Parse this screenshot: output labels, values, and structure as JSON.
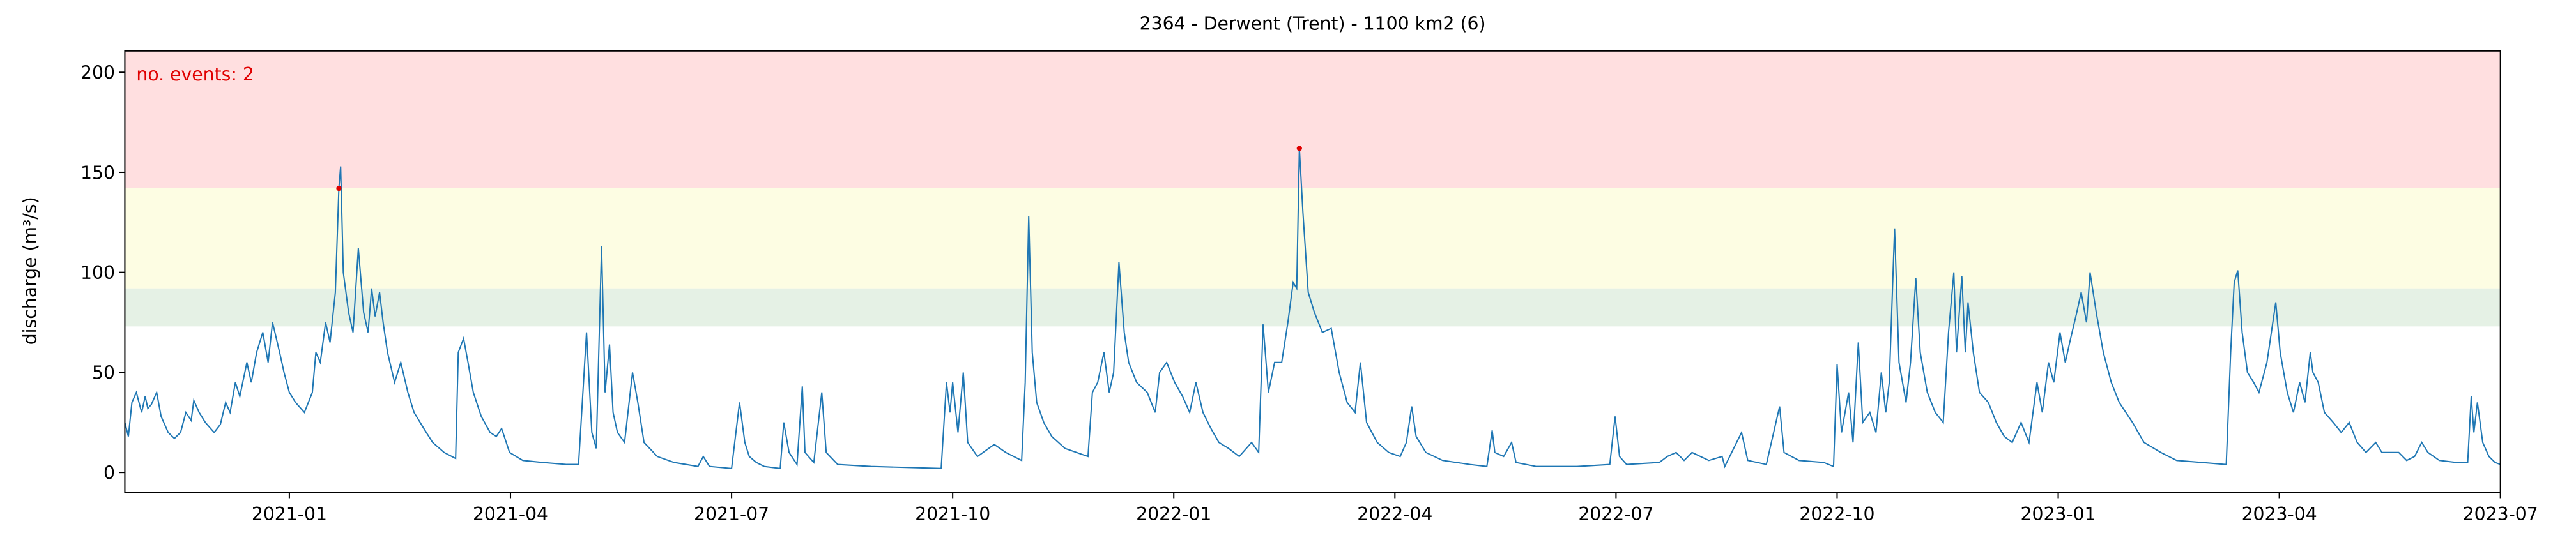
{
  "chart_data": {
    "type": "line",
    "title": "2364 - Derwent (Trent) - 1100 km2 (6)",
    "ylabel": "discharge (m³/s)",
    "color": "#1f77b4",
    "xlim": [
      2020.814,
      2023.5
    ],
    "ylim": [
      -10,
      210.7
    ],
    "yticks": [
      0,
      50,
      100,
      150,
      200
    ],
    "xticks": [
      {
        "value": 2021.0,
        "label": "2021-01"
      },
      {
        "value": 2021.25,
        "label": "2021-04"
      },
      {
        "value": 2021.5,
        "label": "2021-07"
      },
      {
        "value": 2021.75,
        "label": "2021-10"
      },
      {
        "value": 2022.0,
        "label": "2022-01"
      },
      {
        "value": 2022.25,
        "label": "2022-04"
      },
      {
        "value": 2022.5,
        "label": "2022-07"
      },
      {
        "value": 2022.75,
        "label": "2022-10"
      },
      {
        "value": 2023.0,
        "label": "2023-01"
      },
      {
        "value": 2023.25,
        "label": "2023-04"
      },
      {
        "value": 2023.5,
        "label": "2023-07"
      }
    ],
    "bands": [
      {
        "from": 142,
        "color": "#ffdfe0"
      },
      {
        "from": 92,
        "to": 142,
        "color": "#fdfde3"
      },
      {
        "from": 73,
        "to": 92,
        "color": "#e5f1e5"
      }
    ],
    "events": {
      "label": "no. events: 2",
      "color": "#e00000",
      "x": [
        2021.056,
        2022.142
      ],
      "values": [
        142,
        162
      ]
    },
    "x": [
      2020.814,
      2020.818,
      2020.822,
      2020.827,
      2020.833,
      2020.837,
      2020.84,
      2020.844,
      2020.85,
      2020.855,
      2020.863,
      2020.87,
      2020.877,
      2020.883,
      2020.889,
      2020.892,
      2020.898,
      2020.905,
      2020.915,
      2020.922,
      2020.928,
      2020.933,
      2020.939,
      2020.944,
      2020.952,
      2020.957,
      2020.963,
      2020.97,
      2020.976,
      2020.981,
      2020.989,
      2020.994,
      2021.0,
      2021.007,
      2021.017,
      2021.026,
      2021.03,
      2021.035,
      2021.041,
      2021.046,
      2021.052,
      2021.056,
      2021.058,
      2021.061,
      2021.067,
      2021.072,
      2021.078,
      2021.084,
      2021.089,
      2021.093,
      2021.097,
      2021.102,
      2021.106,
      2021.111,
      2021.119,
      2021.126,
      2021.134,
      2021.141,
      2021.152,
      2021.162,
      2021.175,
      2021.188,
      2021.191,
      2021.197,
      2021.202,
      2021.208,
      2021.217,
      2021.227,
      2021.234,
      2021.24,
      2021.249,
      2021.264,
      2021.286,
      2021.314,
      2021.327,
      2021.336,
      2021.342,
      2021.347,
      2021.353,
      2021.357,
      2021.362,
      2021.366,
      2021.371,
      2021.379,
      2021.388,
      2021.394,
      2021.401,
      2021.416,
      2021.435,
      2021.462,
      2021.468,
      2021.475,
      2021.5,
      2021.509,
      2021.515,
      2021.52,
      2021.528,
      2021.537,
      2021.555,
      2021.559,
      2021.565,
      2021.574,
      2021.58,
      2021.583,
      2021.593,
      2021.602,
      2021.607,
      2021.62,
      2021.658,
      2021.737,
      2021.743,
      2021.747,
      2021.75,
      2021.756,
      2021.762,
      2021.767,
      2021.778,
      2021.797,
      2021.81,
      2021.828,
      2021.832,
      2021.836,
      2021.84,
      2021.845,
      2021.853,
      2021.862,
      2021.877,
      2021.89,
      2021.903,
      2021.908,
      2021.914,
      2021.921,
      2021.927,
      2021.932,
      2021.938,
      2021.944,
      2021.949,
      2021.958,
      2021.97,
      2021.979,
      2021.984,
      2021.992,
      2022.001,
      2022.01,
      2022.018,
      2022.025,
      2022.033,
      2022.042,
      2022.051,
      2022.062,
      2022.074,
      2022.088,
      2022.096,
      2022.101,
      2022.107,
      2022.114,
      2022.122,
      2022.129,
      2022.135,
      2022.139,
      2022.142,
      2022.146,
      2022.152,
      2022.159,
      2022.168,
      2022.178,
      2022.187,
      2022.196,
      2022.205,
      2022.211,
      2022.218,
      2022.23,
      2022.243,
      2022.256,
      2022.263,
      2022.269,
      2022.274,
      2022.285,
      2022.304,
      2022.335,
      2022.354,
      2022.36,
      2022.363,
      2022.373,
      2022.382,
      2022.387,
      2022.41,
      2022.456,
      2022.493,
      2022.499,
      2022.504,
      2022.512,
      2022.549,
      2022.558,
      2022.568,
      2022.577,
      2022.586,
      2022.605,
      2022.62,
      2022.623,
      2022.642,
      2022.649,
      2022.67,
      2022.685,
      2022.69,
      2022.707,
      2022.735,
      2022.746,
      2022.75,
      2022.755,
      2022.763,
      2022.768,
      2022.774,
      2022.779,
      2022.787,
      2022.794,
      2022.8,
      2022.805,
      2022.809,
      2022.815,
      2022.82,
      2022.828,
      2022.833,
      2022.839,
      2022.844,
      2022.852,
      2022.861,
      2022.87,
      2022.876,
      2022.882,
      2022.885,
      2022.891,
      2022.895,
      2022.898,
      2022.904,
      2022.911,
      2022.921,
      2022.93,
      2022.939,
      2022.948,
      2022.958,
      2022.967,
      2022.976,
      2022.982,
      2022.989,
      2022.995,
      2023.002,
      2023.008,
      2023.013,
      2023.021,
      2023.026,
      2023.032,
      2023.036,
      2023.043,
      2023.051,
      2023.06,
      2023.069,
      2023.084,
      2023.097,
      2023.116,
      2023.134,
      2023.162,
      2023.19,
      2023.195,
      2023.199,
      2023.203,
      2023.208,
      2023.214,
      2023.221,
      2023.227,
      2023.236,
      2023.246,
      2023.251,
      2023.259,
      2023.266,
      2023.273,
      2023.279,
      2023.285,
      2023.288,
      2023.294,
      2023.301,
      2023.311,
      2023.32,
      2023.329,
      2023.338,
      2023.348,
      2023.359,
      2023.366,
      2023.376,
      2023.385,
      2023.394,
      2023.403,
      2023.411,
      2023.418,
      2023.431,
      2023.45,
      2023.463,
      2023.467,
      2023.47,
      2023.474,
      2023.48,
      2023.487,
      2023.494,
      2023.5
    ],
    "values": [
      25,
      18,
      35,
      40,
      30,
      38,
      32,
      34,
      40,
      28,
      20,
      17,
      20,
      30,
      26,
      36,
      30,
      25,
      20,
      24,
      35,
      30,
      45,
      38,
      55,
      45,
      60,
      70,
      55,
      75,
      60,
      50,
      40,
      35,
      30,
      40,
      60,
      55,
      75,
      65,
      90,
      142,
      153,
      100,
      80,
      70,
      112,
      80,
      70,
      92,
      78,
      90,
      75,
      60,
      45,
      55,
      40,
      30,
      22,
      15,
      10,
      7,
      60,
      67,
      55,
      40,
      28,
      20,
      18,
      22,
      10,
      6,
      5,
      4,
      4,
      70,
      20,
      12,
      113,
      40,
      64,
      30,
      20,
      15,
      50,
      35,
      15,
      8,
      5,
      3,
      8,
      3,
      2,
      35,
      15,
      8,
      5,
      3,
      2,
      25,
      10,
      4,
      43,
      10,
      5,
      40,
      10,
      4,
      3,
      2,
      45,
      30,
      45,
      20,
      50,
      15,
      8,
      14,
      10,
      6,
      45,
      128,
      60,
      35,
      25,
      18,
      12,
      10,
      8,
      40,
      45,
      60,
      40,
      50,
      105,
      70,
      55,
      45,
      40,
      30,
      50,
      55,
      45,
      38,
      30,
      45,
      30,
      22,
      15,
      12,
      8,
      15,
      10,
      74,
      40,
      55,
      55,
      75,
      95,
      92,
      162,
      130,
      90,
      80,
      70,
      72,
      50,
      35,
      30,
      55,
      25,
      15,
      10,
      8,
      15,
      33,
      18,
      10,
      6,
      4,
      3,
      21,
      10,
      8,
      15,
      5,
      3,
      3,
      4,
      28,
      8,
      4,
      5,
      8,
      10,
      6,
      10,
      6,
      8,
      3,
      20,
      6,
      4,
      33,
      10,
      6,
      5,
      3,
      54,
      20,
      40,
      15,
      65,
      25,
      30,
      20,
      50,
      30,
      45,
      122,
      55,
      35,
      55,
      97,
      60,
      40,
      30,
      25,
      70,
      100,
      60,
      98,
      60,
      85,
      60,
      40,
      35,
      25,
      18,
      15,
      25,
      15,
      45,
      30,
      55,
      45,
      70,
      55,
      65,
      80,
      90,
      75,
      100,
      80,
      60,
      45,
      35,
      25,
      15,
      10,
      6,
      5,
      4,
      60,
      95,
      101,
      70,
      50,
      45,
      40,
      55,
      85,
      60,
      40,
      30,
      45,
      35,
      60,
      50,
      45,
      30,
      25,
      20,
      25,
      15,
      10,
      15,
      10,
      10,
      10,
      6,
      8,
      15,
      10,
      6,
      5,
      5,
      38,
      20,
      35,
      15,
      8,
      5,
      4
    ]
  }
}
